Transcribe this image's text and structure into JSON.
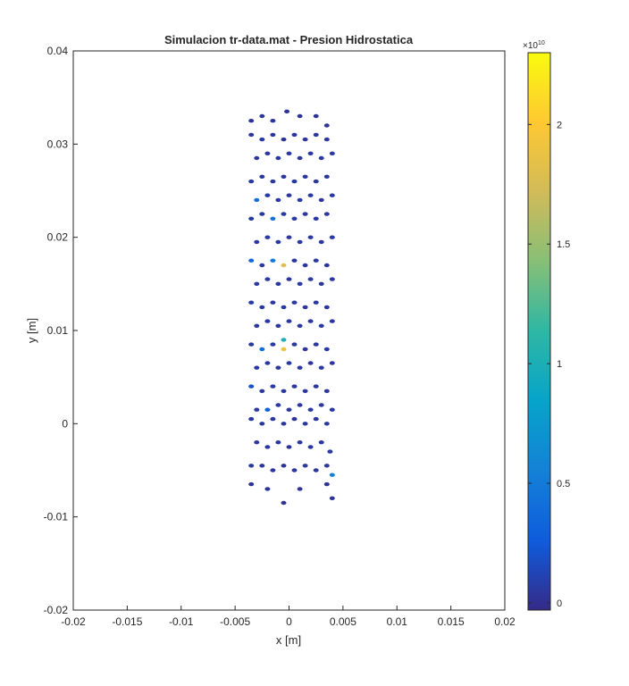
{
  "chart_data": {
    "type": "scatter",
    "title": "Simulacion tr-data.mat - Presion Hidrostatica",
    "xlabel": "x  [m]",
    "ylabel": "y [m]",
    "xlim": [
      -0.02,
      0.02
    ],
    "ylim": [
      -0.02,
      0.04
    ],
    "xticks": [
      "-0.02",
      "-0.015",
      "-0.01",
      "-0.005",
      "0",
      "0.005",
      "0.01",
      "0.015",
      "0.02"
    ],
    "yticks": [
      "-0.02",
      "-0.01",
      "0",
      "0.01",
      "0.02",
      "0.03",
      "0.04"
    ],
    "grid": false,
    "colormap": "parula",
    "colorbar": {
      "clim": [
        -0.03,
        2.3
      ],
      "ticks": [
        "0",
        "0.5",
        "1",
        "1.5",
        "2"
      ],
      "exponent_base": "×10",
      "exponent_power": "10"
    },
    "points": [
      [
        -0.0035,
        -0.0065,
        0.02
      ],
      [
        -0.002,
        -0.007,
        0.03
      ],
      [
        -0.0005,
        -0.0085,
        0.01
      ],
      [
        0.001,
        -0.007,
        0.02
      ],
      [
        0.0035,
        -0.0065,
        0.02
      ],
      [
        0.004,
        -0.008,
        0.03
      ],
      [
        -0.0035,
        -0.0045,
        0.05
      ],
      [
        -0.0025,
        -0.0045,
        0.04
      ],
      [
        -0.0015,
        -0.005,
        0.04
      ],
      [
        -0.0005,
        -0.0045,
        0.03
      ],
      [
        0.0005,
        -0.005,
        0.04
      ],
      [
        0.0015,
        -0.0045,
        0.05
      ],
      [
        0.0025,
        -0.005,
        0.04
      ],
      [
        0.0035,
        -0.0045,
        0.05
      ],
      [
        0.004,
        -0.0055,
        0.55
      ],
      [
        -0.003,
        -0.002,
        0.04
      ],
      [
        -0.002,
        -0.0025,
        0.05
      ],
      [
        -0.001,
        -0.002,
        0.04
      ],
      [
        0.0,
        -0.0025,
        0.03
      ],
      [
        0.001,
        -0.002,
        0.05
      ],
      [
        0.002,
        -0.0025,
        0.04
      ],
      [
        0.003,
        -0.002,
        0.04
      ],
      [
        0.0038,
        -0.003,
        0.06
      ],
      [
        -0.0035,
        0.0005,
        0.04
      ],
      [
        -0.0025,
        0.0,
        0.06
      ],
      [
        -0.0015,
        0.0005,
        0.05
      ],
      [
        -0.0005,
        0.0,
        0.04
      ],
      [
        0.0005,
        0.0005,
        0.03
      ],
      [
        0.0015,
        0.0,
        0.05
      ],
      [
        0.0025,
        0.0005,
        0.04
      ],
      [
        0.0035,
        0.0,
        0.06
      ],
      [
        -0.003,
        0.0015,
        0.05
      ],
      [
        -0.002,
        0.0015,
        0.3
      ],
      [
        -0.001,
        0.002,
        0.06
      ],
      [
        0.0,
        0.0015,
        0.05
      ],
      [
        0.001,
        0.002,
        0.04
      ],
      [
        0.002,
        0.0015,
        0.05
      ],
      [
        0.003,
        0.002,
        0.04
      ],
      [
        0.004,
        0.0015,
        0.05
      ],
      [
        -0.0035,
        0.004,
        0.2
      ],
      [
        -0.0025,
        0.0035,
        0.05
      ],
      [
        -0.0015,
        0.004,
        0.06
      ],
      [
        -0.0005,
        0.0035,
        0.05
      ],
      [
        0.0005,
        0.004,
        0.04
      ],
      [
        0.0015,
        0.0035,
        0.05
      ],
      [
        0.0025,
        0.004,
        0.04
      ],
      [
        0.0035,
        0.0035,
        0.05
      ],
      [
        -0.003,
        0.006,
        0.06
      ],
      [
        -0.002,
        0.0065,
        0.05
      ],
      [
        -0.001,
        0.006,
        0.04
      ],
      [
        0.0,
        0.0065,
        0.06
      ],
      [
        0.001,
        0.006,
        0.05
      ],
      [
        0.002,
        0.0065,
        0.04
      ],
      [
        0.003,
        0.006,
        0.05
      ],
      [
        0.004,
        0.0065,
        0.04
      ],
      [
        -0.0035,
        0.0085,
        0.05
      ],
      [
        -0.0025,
        0.008,
        0.4
      ],
      [
        -0.0015,
        0.0085,
        0.06
      ],
      [
        -0.0005,
        0.008,
        1.9
      ],
      [
        0.0005,
        0.0085,
        0.05
      ],
      [
        0.0015,
        0.008,
        0.04
      ],
      [
        0.0025,
        0.0085,
        0.05
      ],
      [
        0.0035,
        0.008,
        0.06
      ],
      [
        -0.003,
        0.0105,
        0.04
      ],
      [
        -0.002,
        0.011,
        0.06
      ],
      [
        -0.001,
        0.0105,
        0.05
      ],
      [
        -0.0005,
        0.009,
        1.0
      ],
      [
        0.0,
        0.011,
        0.04
      ],
      [
        0.001,
        0.0105,
        0.05
      ],
      [
        0.002,
        0.011,
        0.04
      ],
      [
        0.003,
        0.0105,
        0.06
      ],
      [
        0.004,
        0.011,
        0.05
      ],
      [
        -0.0035,
        0.013,
        0.06
      ],
      [
        -0.0025,
        0.0125,
        0.05
      ],
      [
        -0.0015,
        0.013,
        0.04
      ],
      [
        -0.0005,
        0.0125,
        0.06
      ],
      [
        0.0005,
        0.013,
        0.05
      ],
      [
        0.0015,
        0.0125,
        0.04
      ],
      [
        0.0025,
        0.013,
        0.05
      ],
      [
        0.0035,
        0.0125,
        0.04
      ],
      [
        -0.003,
        0.015,
        0.05
      ],
      [
        -0.002,
        0.0155,
        0.06
      ],
      [
        -0.001,
        0.015,
        0.05
      ],
      [
        0.0,
        0.0155,
        0.04
      ],
      [
        0.001,
        0.015,
        0.06
      ],
      [
        0.002,
        0.0155,
        0.05
      ],
      [
        0.003,
        0.015,
        0.04
      ],
      [
        0.004,
        0.0155,
        0.05
      ],
      [
        -0.0035,
        0.0175,
        0.35
      ],
      [
        -0.0025,
        0.017,
        0.06
      ],
      [
        -0.0015,
        0.0175,
        0.5
      ],
      [
        -0.0005,
        0.017,
        1.8
      ],
      [
        0.0005,
        0.0175,
        0.04
      ],
      [
        0.0015,
        0.017,
        0.06
      ],
      [
        0.0025,
        0.0175,
        0.05
      ],
      [
        0.0035,
        0.017,
        0.04
      ],
      [
        -0.003,
        0.0195,
        0.05
      ],
      [
        -0.002,
        0.02,
        0.06
      ],
      [
        -0.001,
        0.0195,
        0.05
      ],
      [
        0.0,
        0.02,
        0.04
      ],
      [
        0.001,
        0.0195,
        0.06
      ],
      [
        0.002,
        0.02,
        0.05
      ],
      [
        0.003,
        0.0195,
        0.04
      ],
      [
        0.004,
        0.02,
        0.05
      ],
      [
        -0.0035,
        0.022,
        0.06
      ],
      [
        -0.0025,
        0.0225,
        0.05
      ],
      [
        -0.0015,
        0.022,
        0.45
      ],
      [
        -0.0005,
        0.0225,
        0.06
      ],
      [
        0.0005,
        0.022,
        0.05
      ],
      [
        0.0015,
        0.0225,
        0.04
      ],
      [
        0.0025,
        0.022,
        0.05
      ],
      [
        0.0035,
        0.0225,
        0.04
      ],
      [
        -0.003,
        0.024,
        0.4
      ],
      [
        -0.002,
        0.0245,
        0.06
      ],
      [
        -0.001,
        0.024,
        0.05
      ],
      [
        0.0,
        0.0245,
        0.04
      ],
      [
        0.001,
        0.024,
        0.06
      ],
      [
        0.002,
        0.0245,
        0.05
      ],
      [
        0.003,
        0.024,
        0.04
      ],
      [
        0.004,
        0.0245,
        0.05
      ],
      [
        -0.0035,
        0.026,
        0.05
      ],
      [
        -0.0025,
        0.0265,
        0.06
      ],
      [
        -0.0015,
        0.026,
        0.05
      ],
      [
        -0.0005,
        0.0265,
        0.04
      ],
      [
        0.0005,
        0.026,
        0.06
      ],
      [
        0.0015,
        0.0265,
        0.05
      ],
      [
        0.0025,
        0.026,
        0.04
      ],
      [
        0.0035,
        0.0265,
        0.05
      ],
      [
        -0.003,
        0.0285,
        0.05
      ],
      [
        -0.002,
        0.029,
        0.04
      ],
      [
        -0.001,
        0.0285,
        0.06
      ],
      [
        0.0,
        0.029,
        0.05
      ],
      [
        0.001,
        0.0285,
        0.04
      ],
      [
        0.002,
        0.029,
        0.05
      ],
      [
        0.003,
        0.0285,
        0.04
      ],
      [
        0.004,
        0.029,
        0.05
      ],
      [
        -0.0035,
        0.031,
        0.04
      ],
      [
        -0.0025,
        0.0305,
        0.05
      ],
      [
        -0.0015,
        0.031,
        0.04
      ],
      [
        -0.0005,
        0.0305,
        0.03
      ],
      [
        0.0005,
        0.031,
        0.04
      ],
      [
        0.0015,
        0.0305,
        0.05
      ],
      [
        0.0025,
        0.031,
        0.04
      ],
      [
        0.0035,
        0.0305,
        0.05
      ],
      [
        -0.0035,
        0.0325,
        0.03
      ],
      [
        -0.0025,
        0.033,
        0.04
      ],
      [
        -0.0015,
        0.0325,
        0.03
      ],
      [
        -0.0002,
        0.0335,
        0.02
      ],
      [
        0.001,
        0.033,
        0.03
      ],
      [
        0.0025,
        0.033,
        0.02
      ],
      [
        0.0035,
        0.032,
        0.03
      ]
    ]
  }
}
